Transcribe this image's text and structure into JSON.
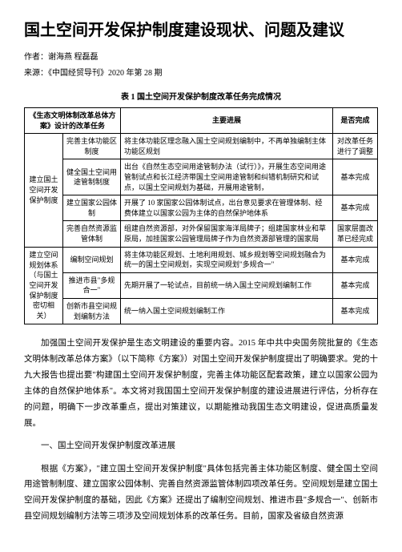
{
  "title": "国土空间开发保护制度建设现状、问题及建议",
  "author": "作者：谢海燕 程磊磊",
  "source": "来源：《中国经贸导刊》2020 年第 28 期",
  "table_caption": "表 1  国土空间开发保护制度改革任务完成情况",
  "headers": {
    "h1": "《生态文明体制改革总体方案》设计的改革任务",
    "h2": "主要进展",
    "h3": "是否完成"
  },
  "rows": {
    "g1_label": "建立国土空间开发保护制度",
    "r1_task": "完善主体功能区制度",
    "r1_progress": "将主体功能区理念融入国土空间规划编制中，不再单独编制主体功能区规划",
    "r1_status": "对改革任务进行了调整",
    "r2_task": "健全国土空间用途管制制度",
    "r2_progress": "出台《自然生态空间用途管制办法（试行）》，开展生态空间用途管制试点和长江经济带国土空间用途管制和纠错机制研究和试点，以国土空间规划为基础，开展用途管制，",
    "r2_status": "基本完成",
    "r3_task": "建立国家公园体制",
    "r3_progress": "开展了 10 家国家公园体制试点，出台意见要求在管理体制、经费体建立以国家公园为主体的自然保护地体系",
    "r3_status": "基本完成",
    "r4_task": "完善自然资源监管体制",
    "r4_progress": "组建自然资源部，对外保留国家海洋局牌子；组建国家林业和草原局，加挂国家公园管理局牌子作为自然资源部管理的国家局",
    "r4_status": "国家层面改革已经完成",
    "g2_label": "建立空间规划体系（与国土空间开发保护制度密切相关）",
    "r5_task": "编制空间规划",
    "r5_progress": "将主体功能区规划、土地利用规划、城乡规划等空间规划融合为统一的国土空间规划，实现空间规划\"多规合一\"",
    "r5_status": "基本完成",
    "r6_task": "推进市县\"多规合一\"",
    "r6_progress": "先期开展了一轮试点，目前统一纳入国土空间规划编制工作",
    "r6_status": "基本完成",
    "r7_task": "创新市县空间规划编制方法",
    "r7_progress": "统一纳入国土空间规划编制工作",
    "r7_status": "基本完成"
  },
  "para1": "加强国土空间开发保护是生态文明建设的重要内容。2015 年中共中央国务院批复的《生态文明体制改革总体方案》（以下简称《方案》）对国土空间开发保护制度提出了明确要求。党的十九大报告也提出要\"构建国土空间开发保护制度，完善主体功能区配套政策，建立以国家公园为主体的自然保护地体系\"。本文将对我国国土空间开发保护制度的建设进展进行评估，分析存在的问题，明确下一步改革重点，提出对策建议，以期能推动我国生态文明建设，促进高质量发展。",
  "section1": "一、国土空间开发保护制度改革进展",
  "para2": "根据《方案》，\"建立国土空间开发保护制度\"具体包括完善主体功能区制度、健全国土空间用途管制制度、建立国家公园体制、完善自然资源监管体制四项改革任务。空间规划是建立国土空间开发保护制度的基础，因此《方案》还提出了编制空间规划、推进市县\"多规合一\"、创新市县空间规划编制方法等三项涉及空间规划体系的改革任务。目前，国家及省级自然资源"
}
